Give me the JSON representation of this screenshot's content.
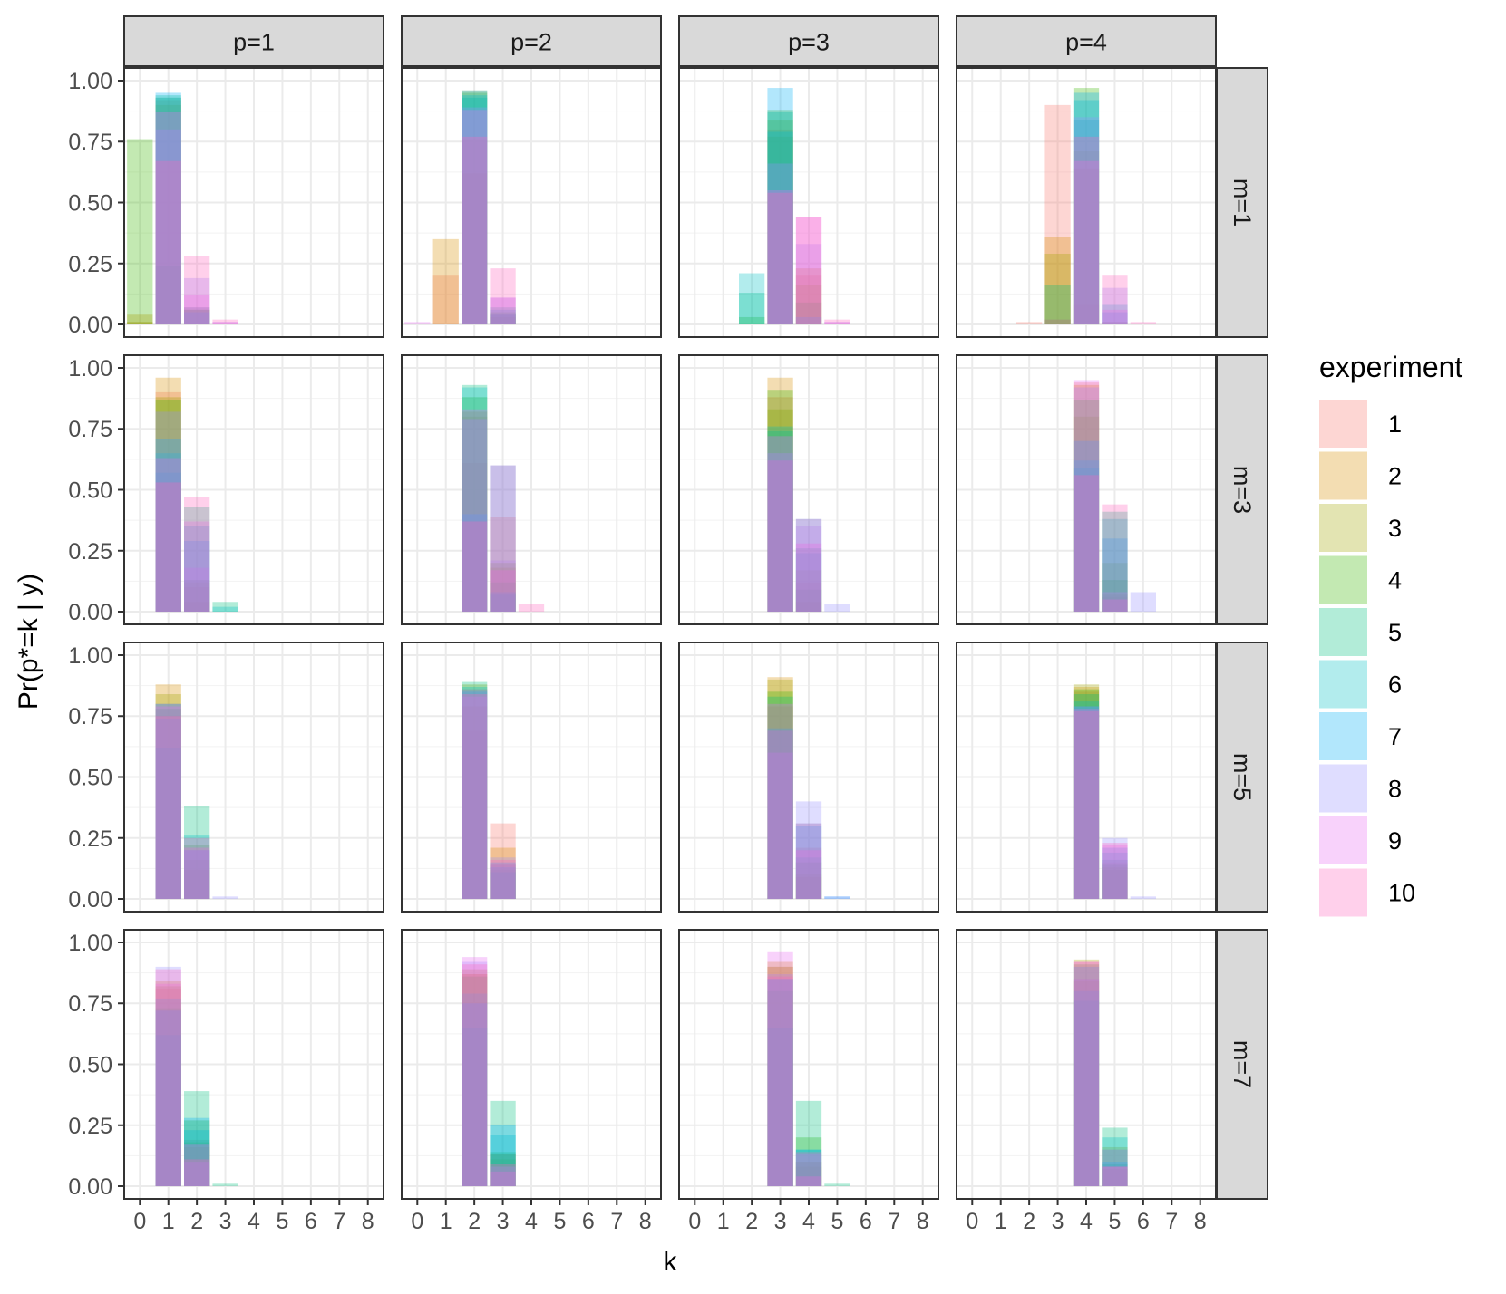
{
  "chart_data": {
    "type": "bar",
    "layout": "facet-grid",
    "x_var": "k",
    "xlabel": "k",
    "ylabel": "Pr(p*=k | y)",
    "x_ticks": [
      "0",
      "1",
      "2",
      "3",
      "4",
      "5",
      "6",
      "7",
      "8"
    ],
    "y_ticks": [
      "0.00",
      "0.25",
      "0.50",
      "0.75",
      "1.00"
    ],
    "ylim": [
      0,
      1.05
    ],
    "xlim": [
      0,
      8
    ],
    "grid": true,
    "col_facets": [
      "p=1",
      "p=2",
      "p=3",
      "p=4"
    ],
    "row_facets": [
      "m=1",
      "m=3",
      "m=5",
      "m=7"
    ],
    "legend": {
      "title": "experiment",
      "position": "right",
      "entries": [
        "1",
        "2",
        "3",
        "4",
        "5",
        "6",
        "7",
        "8",
        "9",
        "10"
      ],
      "colors": [
        "#F8766D",
        "#D89000",
        "#A3A500",
        "#39B600",
        "#00BF7D",
        "#00BFC4",
        "#00B0F6",
        "#9590FF",
        "#E76BF3",
        "#FF62BC"
      ],
      "alpha": 0.3
    },
    "panels": [
      {
        "row": "m=1",
        "col": "p=1",
        "bars": [
          {
            "k": 0,
            "values": [
              0.01,
              0.04,
              0.01,
              0.76,
              0.0,
              0.0,
              0.0,
              0.0,
              0.0,
              0.0
            ]
          },
          {
            "k": 1,
            "values": [
              0.92,
              0.9,
              0.93,
              0.24,
              0.94,
              0.93,
              0.95,
              0.8,
              0.87,
              0.67
            ]
          },
          {
            "k": 2,
            "values": [
              0.07,
              0.06,
              0.06,
              0.0,
              0.06,
              0.07,
              0.05,
              0.19,
              0.12,
              0.28
            ]
          },
          {
            "k": 3,
            "values": [
              0.0,
              0.0,
              0.0,
              0.0,
              0.0,
              0.0,
              0.0,
              0.01,
              0.01,
              0.02
            ]
          }
        ]
      },
      {
        "row": "m=1",
        "col": "p=2",
        "bars": [
          {
            "k": 0,
            "values": [
              0.0,
              0.0,
              0.0,
              0.0,
              0.0,
              0.0,
              0.0,
              0.0,
              0.01,
              0.0
            ]
          },
          {
            "k": 1,
            "values": [
              0.2,
              0.35,
              0.0,
              0.0,
              0.0,
              0.0,
              0.0,
              0.0,
              0.0,
              0.0
            ]
          },
          {
            "k": 2,
            "values": [
              0.76,
              0.62,
              0.96,
              0.95,
              0.93,
              0.94,
              0.96,
              0.89,
              0.88,
              0.77
            ]
          },
          {
            "k": 3,
            "values": [
              0.04,
              0.03,
              0.04,
              0.05,
              0.07,
              0.06,
              0.04,
              0.11,
              0.11,
              0.23
            ]
          },
          {
            "k": 4,
            "values": [
              0.0,
              0.0,
              0.0,
              0.0,
              0.0,
              0.0,
              0.0,
              0.0,
              0.0,
              0.0
            ]
          }
        ]
      },
      {
        "row": "m=1",
        "col": "p=3",
        "bars": [
          {
            "k": 2,
            "values": [
              0.0,
              0.0,
              0.0,
              0.03,
              0.13,
              0.21,
              0.0,
              0.0,
              0.0,
              0.0
            ]
          },
          {
            "k": 3,
            "values": [
              0.8,
              0.77,
              0.84,
              0.88,
              0.87,
              0.79,
              0.97,
              0.66,
              0.55,
              0.54
            ]
          },
          {
            "k": 4,
            "values": [
              0.2,
              0.23,
              0.16,
              0.09,
              0.0,
              0.0,
              0.03,
              0.33,
              0.44,
              0.44
            ]
          },
          {
            "k": 5,
            "values": [
              0.0,
              0.0,
              0.0,
              0.0,
              0.0,
              0.0,
              0.0,
              0.01,
              0.01,
              0.02
            ]
          }
        ]
      },
      {
        "row": "m=1",
        "col": "p=4",
        "bars": [
          {
            "k": 2,
            "values": [
              0.01,
              0.0,
              0.0,
              0.0,
              0.0,
              0.0,
              0.0,
              0.0,
              0.0,
              0.0
            ]
          },
          {
            "k": 3,
            "values": [
              0.9,
              0.36,
              0.29,
              0.02,
              0.16,
              0.0,
              0.0,
              0.0,
              0.0,
              0.02
            ]
          },
          {
            "k": 4,
            "values": [
              0.08,
              0.64,
              0.71,
              0.97,
              0.84,
              0.92,
              0.95,
              0.85,
              0.67,
              0.77
            ]
          },
          {
            "k": 5,
            "values": [
              0.01,
              0.0,
              0.0,
              0.01,
              0.0,
              0.08,
              0.05,
              0.15,
              0.06,
              0.2
            ]
          },
          {
            "k": 6,
            "values": [
              0.0,
              0.0,
              0.0,
              0.0,
              0.0,
              0.0,
              0.0,
              0.0,
              0.0,
              0.01
            ]
          }
        ]
      },
      {
        "row": "m=3",
        "col": "p=1",
        "bars": [
          {
            "k": 1,
            "values": [
              0.9,
              0.96,
              0.88,
              0.87,
              0.57,
              0.65,
              0.71,
              0.82,
              0.63,
              0.53
            ]
          },
          {
            "k": 2,
            "values": [
              0.1,
              0.04,
              0.12,
              0.13,
              0.43,
              0.35,
              0.29,
              0.18,
              0.37,
              0.47
            ]
          },
          {
            "k": 3,
            "values": [
              0.0,
              0.0,
              0.0,
              0.0,
              0.04,
              0.02,
              0.0,
              0.0,
              0.0,
              0.0
            ]
          }
        ]
      },
      {
        "row": "m=3",
        "col": "p=2",
        "bars": [
          {
            "k": 2,
            "values": [
              0.61,
              0.82,
              0.8,
              0.88,
              0.93,
              0.92,
              0.4,
              0.79,
              0.83,
              0.37
            ]
          },
          {
            "k": 3,
            "values": [
              0.39,
              0.18,
              0.2,
              0.12,
              0.07,
              0.08,
              0.6,
              0.21,
              0.17,
              0.6
            ]
          },
          {
            "k": 4,
            "values": [
              0.0,
              0.0,
              0.0,
              0.0,
              0.0,
              0.0,
              0.0,
              0.0,
              0.0,
              0.03
            ]
          }
        ]
      },
      {
        "row": "m=3",
        "col": "p=3",
        "bars": [
          {
            "k": 3,
            "values": [
              0.88,
              0.96,
              0.83,
              0.91,
              0.74,
              0.76,
              0.62,
              0.65,
              0.72,
              0.62
            ]
          },
          {
            "k": 4,
            "values": [
              0.12,
              0.04,
              0.17,
              0.09,
              0.26,
              0.24,
              0.38,
              0.35,
              0.28,
              0.38
            ]
          },
          {
            "k": 5,
            "values": [
              0.0,
              0.0,
              0.0,
              0.0,
              0.0,
              0.0,
              0.0,
              0.03,
              0.0,
              0.0
            ]
          }
        ]
      },
      {
        "row": "m=3",
        "col": "p=4",
        "bars": [
          {
            "k": 4,
            "values": [
              0.94,
              0.93,
              0.8,
              0.87,
              0.59,
              0.62,
              0.7,
              0.92,
              0.95,
              0.56
            ]
          },
          {
            "k": 5,
            "values": [
              0.06,
              0.07,
              0.2,
              0.13,
              0.41,
              0.38,
              0.3,
              0.08,
              0.05,
              0.44
            ]
          },
          {
            "k": 6,
            "values": [
              0.0,
              0.0,
              0.0,
              0.0,
              0.0,
              0.0,
              0.0,
              0.08,
              0.0,
              0.0
            ]
          }
        ]
      },
      {
        "row": "m=5",
        "col": "p=1",
        "bars": [
          {
            "k": 1,
            "values": [
              0.8,
              0.88,
              0.84,
              0.78,
              0.62,
              0.74,
              0.8,
              0.8,
              0.79,
              0.75
            ]
          },
          {
            "k": 2,
            "values": [
              0.2,
              0.12,
              0.16,
              0.22,
              0.38,
              0.26,
              0.2,
              0.2,
              0.21,
              0.25
            ]
          },
          {
            "k": 3,
            "values": [
              0.0,
              0.0,
              0.0,
              0.0,
              0.0,
              0.0,
              0.0,
              0.01,
              0.0,
              0.0
            ]
          }
        ]
      },
      {
        "row": "m=5",
        "col": "p=2",
        "bars": [
          {
            "k": 2,
            "values": [
              0.69,
              0.79,
              0.88,
              0.86,
              0.89,
              0.87,
              0.85,
              0.83,
              0.86,
              0.84
            ]
          },
          {
            "k": 3,
            "values": [
              0.31,
              0.21,
              0.12,
              0.14,
              0.11,
              0.13,
              0.15,
              0.17,
              0.14,
              0.16
            ]
          },
          {
            "k": 4,
            "values": [
              0.0,
              0.0,
              0.0,
              0.0,
              0.0,
              0.0,
              0.0,
              0.0,
              0.0,
              0.0
            ]
          }
        ]
      },
      {
        "row": "m=5",
        "col": "p=3",
        "bars": [
          {
            "k": 3,
            "values": [
              0.79,
              0.91,
              0.9,
              0.85,
              0.83,
              0.69,
              0.7,
              0.6,
              0.8,
              0.69
            ]
          },
          {
            "k": 4,
            "values": [
              0.21,
              0.09,
              0.1,
              0.15,
              0.17,
              0.31,
              0.3,
              0.4,
              0.2,
              0.31
            ]
          },
          {
            "k": 5,
            "values": [
              0.0,
              0.0,
              0.0,
              0.0,
              0.0,
              0.0,
              0.01,
              0.01,
              0.0,
              0.0
            ]
          }
        ]
      },
      {
        "row": "m=5",
        "col": "p=4",
        "bars": [
          {
            "k": 4,
            "values": [
              0.85,
              0.87,
              0.88,
              0.86,
              0.84,
              0.81,
              0.79,
              0.79,
              0.78,
              0.77
            ]
          },
          {
            "k": 5,
            "values": [
              0.15,
              0.13,
              0.12,
              0.14,
              0.16,
              0.19,
              0.21,
              0.25,
              0.22,
              0.23
            ]
          },
          {
            "k": 6,
            "values": [
              0.0,
              0.0,
              0.0,
              0.0,
              0.0,
              0.0,
              0.0,
              0.01,
              0.0,
              0.0
            ]
          }
        ]
      },
      {
        "row": "m=7",
        "col": "p=1",
        "bars": [
          {
            "k": 1,
            "values": [
              0.81,
              0.84,
              0.82,
              0.73,
              0.62,
              0.77,
              0.72,
              0.9,
              0.83,
              0.89
            ]
          },
          {
            "k": 2,
            "values": [
              0.19,
              0.16,
              0.18,
              0.27,
              0.39,
              0.23,
              0.28,
              0.1,
              0.17,
              0.11
            ]
          },
          {
            "k": 3,
            "values": [
              0.0,
              0.0,
              0.0,
              0.0,
              0.01,
              0.0,
              0.0,
              0.0,
              0.0,
              0.0
            ]
          }
        ]
      },
      {
        "row": "m=7",
        "col": "p=2",
        "bars": [
          {
            "k": 2,
            "values": [
              0.87,
              0.87,
              0.89,
              0.86,
              0.65,
              0.79,
              0.75,
              0.92,
              0.94,
              0.91
            ]
          },
          {
            "k": 3,
            "values": [
              0.13,
              0.13,
              0.11,
              0.14,
              0.35,
              0.21,
              0.25,
              0.08,
              0.06,
              0.09
            ]
          },
          {
            "k": 4,
            "values": [
              0.0,
              0.0,
              0.0,
              0.0,
              0.0,
              0.0,
              0.0,
              0.0,
              0.0,
              0.0
            ]
          }
        ]
      },
      {
        "row": "m=7",
        "col": "p=3",
        "bars": [
          {
            "k": 3,
            "values": [
              0.9,
              0.92,
              0.9,
              0.8,
              0.65,
              0.85,
              0.85,
              0.87,
              0.96,
              0.86
            ]
          },
          {
            "k": 4,
            "values": [
              0.1,
              0.08,
              0.1,
              0.2,
              0.35,
              0.15,
              0.15,
              0.13,
              0.04,
              0.14
            ]
          },
          {
            "k": 5,
            "values": [
              0.0,
              0.0,
              0.0,
              0.0,
              0.01,
              0.0,
              0.0,
              0.0,
              0.0,
              0.0
            ]
          }
        ]
      },
      {
        "row": "m=7",
        "col": "p=4",
        "bars": [
          {
            "k": 4,
            "values": [
              0.85,
              0.84,
              0.93,
              0.91,
              0.76,
              0.8,
              0.9,
              0.85,
              0.92,
              0.92
            ]
          },
          {
            "k": 5,
            "values": [
              0.15,
              0.16,
              0.07,
              0.09,
              0.24,
              0.2,
              0.1,
              0.15,
              0.08,
              0.08
            ]
          },
          {
            "k": 6,
            "values": [
              0.0,
              0.0,
              0.0,
              0.0,
              0.0,
              0.0,
              0.0,
              0.0,
              0.0,
              0.0
            ]
          }
        ]
      }
    ]
  }
}
